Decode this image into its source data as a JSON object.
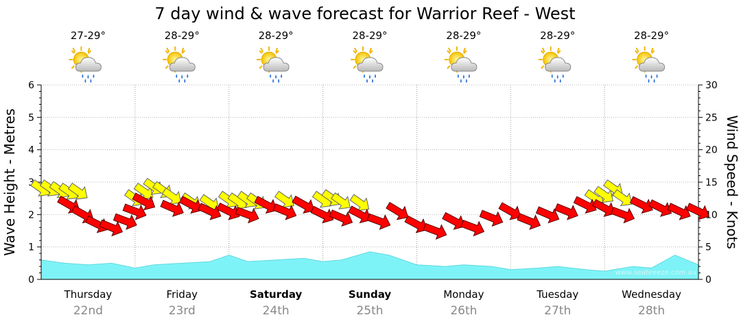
{
  "chart_data": {
    "type": "area",
    "title": "7 day wind & wave forecast for Warrior Reef - West",
    "ylabel_left": "Wave Height - Metres",
    "ylabel_right": "Wind Speed - Knots",
    "ylim_left": [
      0,
      6
    ],
    "ylim_right": [
      0,
      30
    ],
    "yticks_left": [
      "0",
      "1",
      "2",
      "3",
      "4",
      "5",
      "6"
    ],
    "yticks_right": [
      "0",
      "5",
      "10",
      "15",
      "20",
      "25",
      "30"
    ],
    "grid": true,
    "watermark": "www.seabreeze.com.au",
    "days": [
      {
        "day": "Thursday",
        "date": "22nd",
        "temp": "27-29°",
        "bold": false,
        "weather": "cloud-sun-rain"
      },
      {
        "day": "Friday",
        "date": "23rd",
        "temp": "28-29°",
        "bold": false,
        "weather": "cloud-sun-rain"
      },
      {
        "day": "Saturday",
        "date": "24th",
        "temp": "28-29°",
        "bold": true,
        "weather": "cloud-sun-rain"
      },
      {
        "day": "Sunday",
        "date": "25th",
        "temp": "28-29°",
        "bold": true,
        "weather": "cloud-sun-rain"
      },
      {
        "day": "Monday",
        "date": "26th",
        "temp": "28-29°",
        "bold": false,
        "weather": "cloud-sun-rain"
      },
      {
        "day": "Tuesday",
        "date": "27th",
        "temp": "28-29°",
        "bold": false,
        "weather": "cloud-sun-rain"
      },
      {
        "day": "Wednesday",
        "date": "28th",
        "temp": "28-29°",
        "bold": false,
        "weather": "cloud-sun-rain"
      }
    ],
    "x_unit": "days from Thursday 00:00",
    "wave_series": {
      "name": "Wave Height",
      "color": "#7ef3f7",
      "x": [
        0,
        0.25,
        0.5,
        0.75,
        1.0,
        1.2,
        1.5,
        1.8,
        2.0,
        2.2,
        2.5,
        2.8,
        3.0,
        3.2,
        3.5,
        3.7,
        4.0,
        4.3,
        4.5,
        4.8,
        5.0,
        5.3,
        5.5,
        5.8,
        6.0,
        6.3,
        6.5,
        6.75,
        7.0
      ],
      "values": [
        0.6,
        0.5,
        0.45,
        0.5,
        0.35,
        0.45,
        0.5,
        0.55,
        0.75,
        0.55,
        0.6,
        0.65,
        0.55,
        0.6,
        0.85,
        0.75,
        0.45,
        0.4,
        0.45,
        0.4,
        0.3,
        0.35,
        0.4,
        0.3,
        0.25,
        0.4,
        0.35,
        0.75,
        0.45
      ]
    },
    "wave_arrows": {
      "name": "Wave direction",
      "color": "#ffff00",
      "x": [
        0.0,
        0.1,
        0.2,
        0.3,
        0.4,
        1.0,
        1.1,
        1.2,
        1.3,
        1.4,
        1.6,
        1.8,
        2.0,
        2.1,
        2.2,
        2.3,
        2.6,
        3.0,
        3.1,
        3.2,
        3.4,
        5.9,
        6.0,
        6.1,
        6.2
      ],
      "values": [
        2.8,
        2.8,
        2.75,
        2.7,
        2.7,
        2.5,
        2.7,
        2.85,
        2.75,
        2.55,
        2.4,
        2.35,
        2.45,
        2.4,
        2.45,
        2.4,
        2.45,
        2.45,
        2.5,
        2.4,
        2.35,
        2.5,
        2.6,
        2.8,
        2.5
      ]
    },
    "wind_arrows": {
      "name": "Wind speed",
      "color": "#ff0000",
      "x": [
        0.3,
        0.45,
        0.6,
        0.75,
        0.9,
        1.0,
        1.1,
        1.4,
        1.6,
        1.8,
        2.0,
        2.2,
        2.4,
        2.6,
        2.8,
        3.0,
        3.2,
        3.4,
        3.6,
        3.8,
        4.0,
        4.2,
        4.4,
        4.6,
        4.8,
        5.0,
        5.2,
        5.4,
        5.6,
        5.8,
        6.0,
        6.2,
        6.4,
        6.6,
        6.8,
        7.0
      ],
      "values": [
        11.5,
        10,
        8.5,
        8,
        9,
        10.5,
        12,
        11,
        11.5,
        10.5,
        10.5,
        10,
        11.5,
        10.5,
        11.5,
        10,
        9.5,
        10,
        9,
        10.5,
        8.5,
        7.5,
        9,
        8,
        9.5,
        10.5,
        9,
        10,
        10.5,
        11.5,
        11,
        10,
        11.5,
        11,
        10.5,
        10.5
      ]
    }
  }
}
